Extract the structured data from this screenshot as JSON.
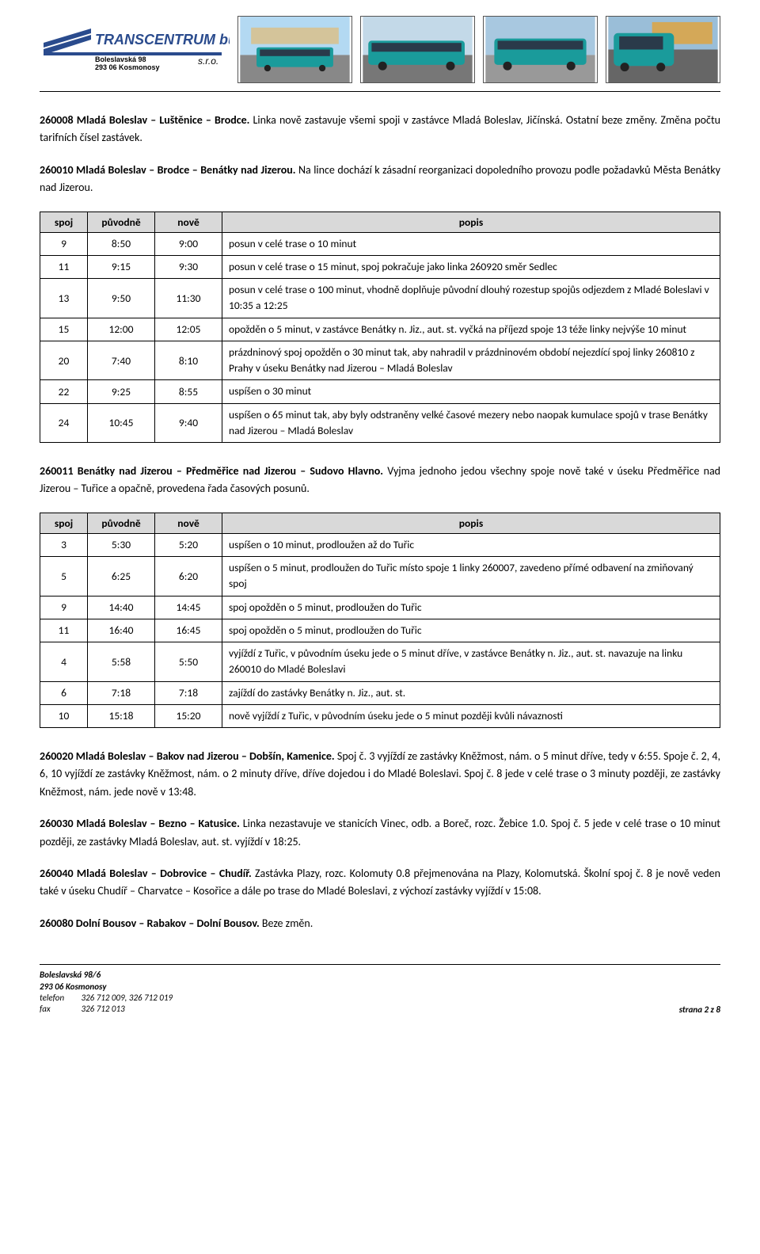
{
  "header": {
    "company": "TRANSCENTRUM bus",
    "suffix": "s.r.o.",
    "addr1": "Boleslavská 98",
    "addr2": "293 06 Kosmonosy"
  },
  "section1": {
    "label": "260008 Mladá Boleslav – Luštěnice – Brodce.",
    "body": "Linka nově zastavuje všemi spoji v zastávce Mladá Boleslav, Jičínská. Ostatní beze změny. Změna počtu tarifních čísel zastávek."
  },
  "section2": {
    "label": "260010 Mladá Boleslav – Brodce – Benátky nad Jizerou.",
    "body": "Na lince dochází k zásadní reorganizaci dopoledního provozu podle požadavků Města Benátky nad Jizerou."
  },
  "table_headers": {
    "spoj": "spoj",
    "puvodne": "původně",
    "nove": "nově",
    "popis": "popis"
  },
  "table1": [
    {
      "spoj": "9",
      "p": "8:50",
      "n": "9:00",
      "d": "posun v celé trase o 10 minut"
    },
    {
      "spoj": "11",
      "p": "9:15",
      "n": "9:30",
      "d": "posun v celé trase o 15 minut, spoj pokračuje jako linka 260920 směr Sedlec"
    },
    {
      "spoj": "13",
      "p": "9:50",
      "n": "11:30",
      "d": "posun v celé trase o 100 minut, vhodně doplňuje původní dlouhý rozestup spojůs odjezdem z Mladé Boleslavi v 10:35 a 12:25"
    },
    {
      "spoj": "15",
      "p": "12:00",
      "n": "12:05",
      "d": "opožděn o 5 minut, v zastávce Benátky n. Jiz., aut. st. vyčká na příjezd spoje 13 téže linky nejvýše 10 minut"
    },
    {
      "spoj": "20",
      "p": "7:40",
      "n": "8:10",
      "d": "prázdninový spoj opožděn o 30 minut tak, aby nahradil v prázdninovém období nejezdící spoj linky 260810 z Prahy v úseku Benátky nad Jizerou – Mladá Boleslav"
    },
    {
      "spoj": "22",
      "p": "9:25",
      "n": "8:55",
      "d": "uspíšen o 30 minut"
    },
    {
      "spoj": "24",
      "p": "10:45",
      "n": "9:40",
      "d": "uspíšen o 65 minut tak, aby byly odstraněny velké časové mezery nebo naopak kumulace spojů v trase Benátky nad Jizerou – Mladá Boleslav"
    }
  ],
  "section3": {
    "label": "260011 Benátky nad Jizerou – Předměřice nad Jizerou – Sudovo Hlavno.",
    "body": "Vyjma jednoho jedou všechny spoje nově také v úseku Předměřice nad Jizerou – Tuřice a opačně, provedena řada časových posunů."
  },
  "table2": [
    {
      "spoj": "3",
      "p": "5:30",
      "n": "5:20",
      "d": "uspíšen o 10 minut, prodloužen až do Tuřic"
    },
    {
      "spoj": "5",
      "p": "6:25",
      "n": "6:20",
      "d": "uspíšen o 5 minut, prodloužen do Tuřic místo spoje 1 linky 260007, zavedeno přímé odbavení na zmiňovaný spoj"
    },
    {
      "spoj": "9",
      "p": "14:40",
      "n": "14:45",
      "d": "spoj opožděn o 5 minut, prodloužen do Tuřic"
    },
    {
      "spoj": "11",
      "p": "16:40",
      "n": "16:45",
      "d": "spoj opožděn o 5 minut, prodloužen do Tuřic"
    },
    {
      "spoj": "4",
      "p": "5:58",
      "n": "5:50",
      "d": "vyjíždí z Tuřic, v původním úseku jede o 5 minut dříve, v zastávce Benátky n. Jiz., aut. st. navazuje na linku 260010 do Mladé Boleslavi"
    },
    {
      "spoj": "6",
      "p": "7:18",
      "n": "7:18",
      "d": "zajíždí do zastávky Benátky n. Jiz., aut. st."
    },
    {
      "spoj": "10",
      "p": "15:18",
      "n": "15:20",
      "d": "nově vyjíždí z Tuřic, v původním úseku jede o 5 minut později kvůli návaznosti"
    }
  ],
  "section4": {
    "label": "260020 Mladá Boleslav – Bakov nad Jizerou – Dobšín, Kamenice.",
    "body": "Spoj č. 3 vyjíždí ze zastávky Kněžmost, nám. o 5 minut dříve, tedy v 6:55. Spoje č. 2, 4, 6, 10 vyjíždí ze zastávky Kněžmost, nám. o 2 minuty dříve, dříve dojedou i do Mladé Boleslavi. Spoj č. 8 jede v celé trase o 3 minuty později, ze zastávky Kněžmost, nám. jede nově v 13:48."
  },
  "section5": {
    "label": "260030 Mladá Boleslav – Bezno – Katusice.",
    "body": "Linka nezastavuje ve stanicích Vinec, odb. a Boreč, rozc. Žebice 1.0. Spoj č. 5 jede v celé trase o 10 minut později, ze zastávky Mladá Boleslav, aut. st. vyjíždí v 18:25."
  },
  "section6": {
    "label": "260040 Mladá Boleslav – Dobrovice – Chudíř.",
    "body": "Zastávka Plazy, rozc. Kolomuty 0.8 přejmenována na Plazy, Kolomutská. Školní spoj č. 8 je nově veden také v úseku Chudíř – Charvatce – Kosořice a dále po trase do Mladé Boleslavi, z výchozí zastávky vyjíždí v 15:08."
  },
  "section7": {
    "label": "260080 Dolní Bousov – Rabakov – Dolní Bousov.",
    "body": "Beze změn."
  },
  "footer": {
    "addr1": "Boleslavská 98/6",
    "addr2": "293 06  Kosmonosy",
    "tel_label": "telefon",
    "tel": "326 712 009,  326 712 019",
    "fax_label": "fax",
    "fax": "326 712 013",
    "page": "strana 2 z 8"
  },
  "colors": {
    "header_bg": "#d9d9d9",
    "teal": "#1a9b9b",
    "sky": "#b3d9f2",
    "ground": "#888888"
  }
}
